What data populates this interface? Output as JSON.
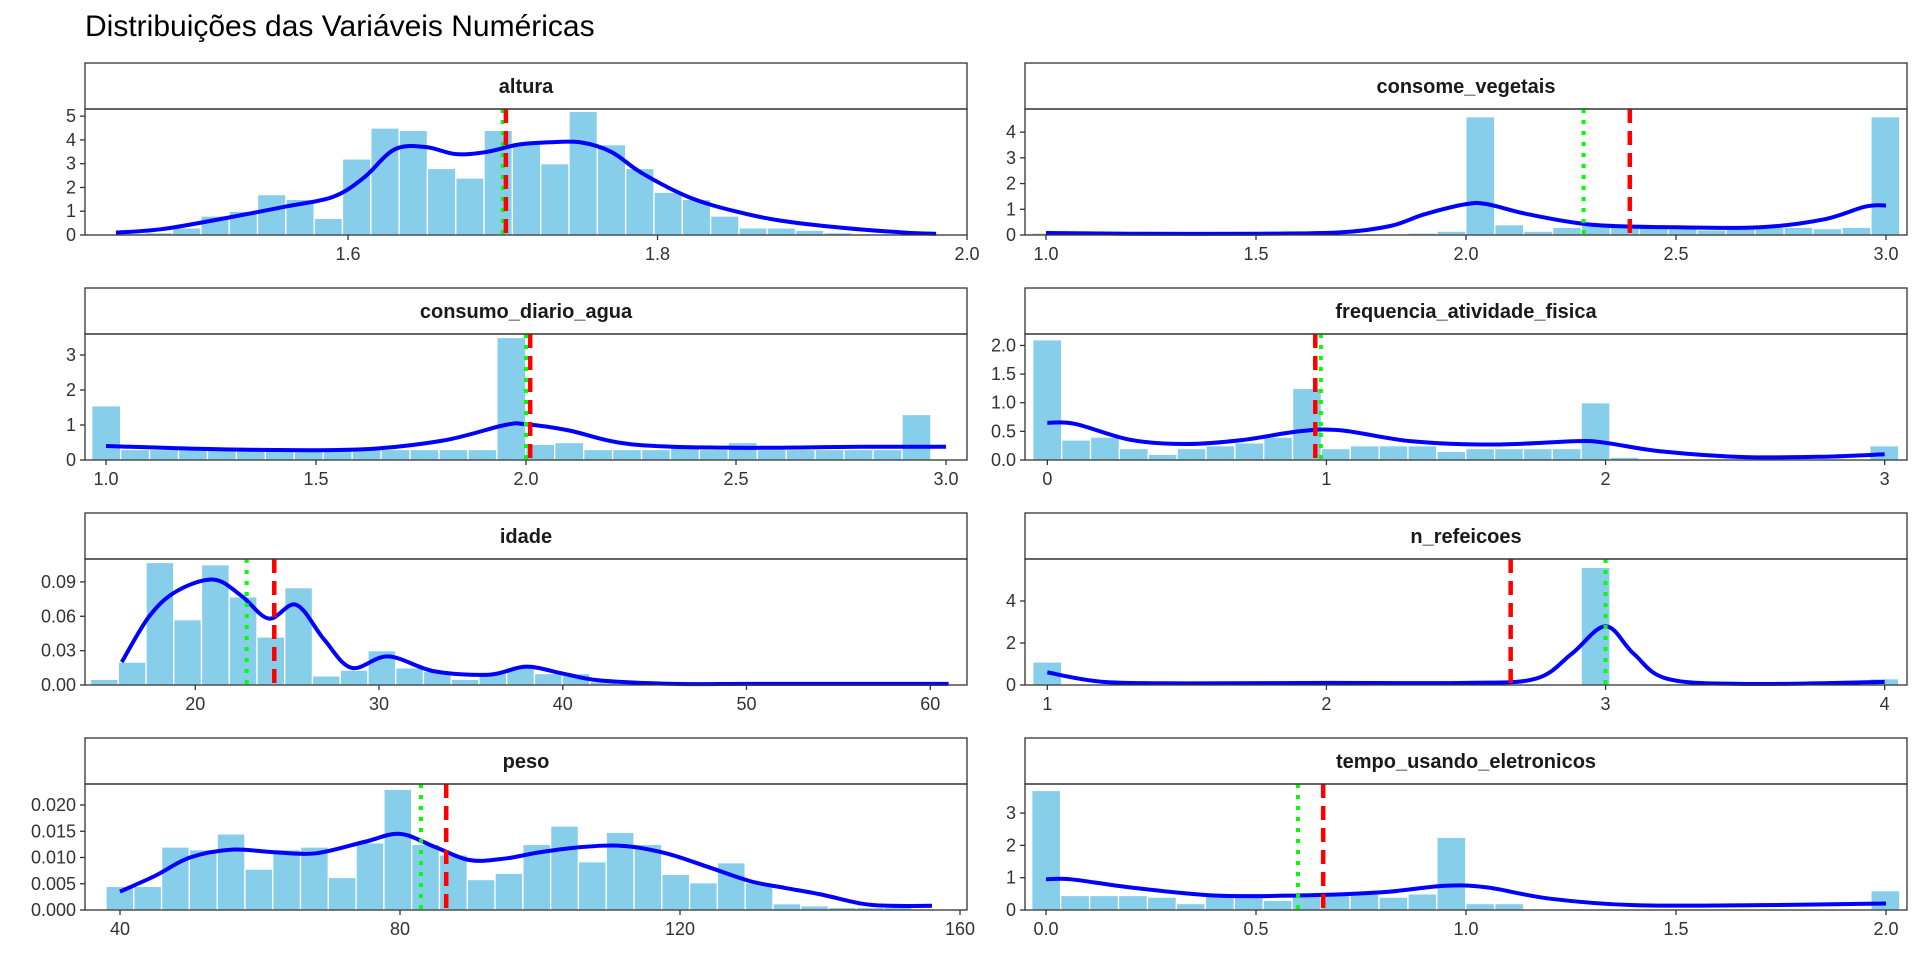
{
  "title": "Distribuições das Variáveis Numéricas",
  "colors": {
    "bar_fill": "#87CEEB",
    "bar_stroke": "#ffffff",
    "density": "#0000FF",
    "mean_line": "#FF0000",
    "median_line": "#00FF00",
    "strip_fill": "#ffffff",
    "panel_border": "#333333"
  },
  "chart_data": [
    {
      "type": "bar",
      "panel": "altura",
      "xlim": [
        1.43,
        2.0
      ],
      "ylim": [
        0,
        5.3
      ],
      "x_ticks": [
        1.6,
        1.8,
        2.0
      ],
      "x_tick_labels": [
        "1.6",
        "1.8",
        "2.0"
      ],
      "y_ticks": [
        0,
        1,
        2,
        3,
        4,
        5
      ],
      "y_tick_labels": [
        "0",
        "1",
        "2",
        "3",
        "4",
        "5"
      ],
      "bin_start": 1.45,
      "bin_width": 0.0183,
      "values": [
        0.08,
        0.1,
        0.3,
        0.8,
        1.0,
        1.7,
        1.5,
        0.7,
        3.2,
        4.5,
        4.4,
        2.8,
        2.4,
        4.4,
        3.9,
        3.0,
        5.2,
        3.8,
        2.8,
        1.8,
        1.5,
        0.8,
        0.3,
        0.3,
        0.2,
        0.1,
        0.05,
        0.05,
        0.03
      ],
      "density": [
        [
          1.45,
          0.1
        ],
        [
          1.48,
          0.25
        ],
        [
          1.52,
          0.7
        ],
        [
          1.56,
          1.2
        ],
        [
          1.59,
          1.6
        ],
        [
          1.61,
          2.4
        ],
        [
          1.63,
          3.6
        ],
        [
          1.65,
          3.7
        ],
        [
          1.67,
          3.4
        ],
        [
          1.69,
          3.5
        ],
        [
          1.71,
          3.8
        ],
        [
          1.73,
          3.9
        ],
        [
          1.75,
          3.9
        ],
        [
          1.77,
          3.5
        ],
        [
          1.79,
          2.6
        ],
        [
          1.82,
          1.6
        ],
        [
          1.85,
          1.0
        ],
        [
          1.88,
          0.6
        ],
        [
          1.92,
          0.3
        ],
        [
          1.96,
          0.1
        ],
        [
          1.98,
          0.05
        ]
      ],
      "mean": 1.702,
      "median": 1.7
    },
    {
      "type": "bar",
      "panel": "consome_vegetais",
      "xlim": [
        0.95,
        3.05
      ],
      "ylim": [
        0,
        4.9
      ],
      "x_ticks": [
        1.0,
        1.5,
        2.0,
        2.5,
        3.0
      ],
      "x_tick_labels": [
        "1.0",
        "1.5",
        "2.0",
        "2.5",
        "3.0"
      ],
      "y_ticks": [
        0,
        1,
        2,
        3,
        4
      ],
      "y_tick_labels": [
        "0",
        "1",
        "2",
        "3",
        "4"
      ],
      "bin_start": 0.966,
      "bin_width": 0.0689,
      "values": [
        0.08,
        0.03,
        0.03,
        0.03,
        0.03,
        0.03,
        0.03,
        0.03,
        0.03,
        0.03,
        0.03,
        0.05,
        0.05,
        0.08,
        0.15,
        4.6,
        0.4,
        0.15,
        0.3,
        0.4,
        0.3,
        0.3,
        0.25,
        0.2,
        0.3,
        0.3,
        0.3,
        0.25,
        0.3,
        4.6
      ],
      "density": [
        [
          1.0,
          0.08
        ],
        [
          1.2,
          0.05
        ],
        [
          1.5,
          0.05
        ],
        [
          1.7,
          0.1
        ],
        [
          1.82,
          0.35
        ],
        [
          1.9,
          0.8
        ],
        [
          2.0,
          1.2
        ],
        [
          2.05,
          1.2
        ],
        [
          2.15,
          0.8
        ],
        [
          2.3,
          0.4
        ],
        [
          2.5,
          0.3
        ],
        [
          2.7,
          0.3
        ],
        [
          2.85,
          0.6
        ],
        [
          2.95,
          1.1
        ],
        [
          3.0,
          1.15
        ]
      ],
      "mean": 2.39,
      "median": 2.28
    },
    {
      "type": "bar",
      "panel": "consumo_diario_agua",
      "xlim": [
        0.95,
        3.05
      ],
      "ylim": [
        0,
        3.6
      ],
      "x_ticks": [
        1.0,
        1.5,
        2.0,
        2.5,
        3.0
      ],
      "x_tick_labels": [
        "1.0",
        "1.5",
        "2.0",
        "2.5",
        "3.0"
      ],
      "y_ticks": [
        0,
        1,
        2,
        3
      ],
      "y_tick_labels": [
        "0",
        "1",
        "2",
        "3"
      ],
      "bin_start": 0.966,
      "bin_width": 0.0689,
      "values": [
        1.55,
        0.3,
        0.3,
        0.3,
        0.3,
        0.3,
        0.3,
        0.3,
        0.3,
        0.3,
        0.3,
        0.3,
        0.3,
        0.3,
        3.5,
        0.45,
        0.5,
        0.3,
        0.3,
        0.3,
        0.35,
        0.3,
        0.5,
        0.3,
        0.3,
        0.3,
        0.3,
        0.3,
        1.3
      ],
      "density": [
        [
          1.0,
          0.4
        ],
        [
          1.3,
          0.3
        ],
        [
          1.6,
          0.3
        ],
        [
          1.8,
          0.55
        ],
        [
          1.95,
          1.0
        ],
        [
          2.0,
          1.02
        ],
        [
          2.1,
          0.85
        ],
        [
          2.25,
          0.45
        ],
        [
          2.5,
          0.35
        ],
        [
          2.8,
          0.38
        ],
        [
          3.0,
          0.38
        ]
      ],
      "mean": 2.01,
      "median": 2.0
    },
    {
      "type": "bar",
      "panel": "frequencia_atividade_fisica",
      "xlim": [
        -0.08,
        3.08
      ],
      "ylim": [
        0,
        2.2
      ],
      "x_ticks": [
        0,
        1,
        2,
        3
      ],
      "x_tick_labels": [
        "0",
        "1",
        "2",
        "3"
      ],
      "y_ticks": [
        0,
        0.5,
        1.0,
        1.5,
        2.0
      ],
      "y_tick_labels": [
        "0.0",
        "0.5",
        "1.0",
        "1.5",
        "2.0"
      ],
      "bin_start": -0.052,
      "bin_width": 0.1034,
      "values": [
        2.1,
        0.35,
        0.4,
        0.2,
        0.1,
        0.2,
        0.25,
        0.3,
        0.4,
        1.25,
        0.2,
        0.25,
        0.25,
        0.25,
        0.15,
        0.2,
        0.2,
        0.2,
        0.2,
        1.0,
        0.05,
        0.02,
        0.02,
        0.02,
        0.02,
        0.02,
        0.02,
        0.02,
        0.02,
        0.25
      ],
      "density": [
        [
          0.0,
          0.65
        ],
        [
          0.1,
          0.63
        ],
        [
          0.3,
          0.35
        ],
        [
          0.5,
          0.28
        ],
        [
          0.7,
          0.35
        ],
        [
          0.9,
          0.5
        ],
        [
          1.05,
          0.52
        ],
        [
          1.3,
          0.33
        ],
        [
          1.6,
          0.27
        ],
        [
          1.9,
          0.33
        ],
        [
          2.0,
          0.3
        ],
        [
          2.2,
          0.15
        ],
        [
          2.5,
          0.05
        ],
        [
          2.8,
          0.06
        ],
        [
          3.0,
          0.1
        ]
      ],
      "mean": 0.96,
      "median": 0.98
    },
    {
      "type": "bar",
      "panel": "idade",
      "xlim": [
        14.0,
        62.0
      ],
      "ylim": [
        0,
        0.11
      ],
      "x_ticks": [
        20,
        30,
        40,
        50,
        60
      ],
      "x_tick_labels": [
        "20",
        "30",
        "40",
        "50",
        "60"
      ],
      "y_ticks": [
        0,
        0.03,
        0.06,
        0.09
      ],
      "y_tick_labels": [
        "0.00",
        "0.03",
        "0.06",
        "0.09"
      ],
      "bin_start": 14.3,
      "bin_width": 1.51,
      "values": [
        0.005,
        0.02,
        0.107,
        0.057,
        0.105,
        0.077,
        0.042,
        0.085,
        0.008,
        0.013,
        0.03,
        0.015,
        0.012,
        0.005,
        0.01,
        0.015,
        0.01,
        0.01,
        0.003,
        0.003,
        0.001,
        0.001,
        0.001,
        0.001,
        0.001,
        0.001,
        0.001,
        0.001,
        0.001,
        0.001,
        0.001
      ],
      "density": [
        [
          16,
          0.02
        ],
        [
          17.5,
          0.06
        ],
        [
          19,
          0.082
        ],
        [
          21,
          0.092
        ],
        [
          22.5,
          0.078
        ],
        [
          24,
          0.058
        ],
        [
          25.5,
          0.07
        ],
        [
          27,
          0.04
        ],
        [
          28.5,
          0.015
        ],
        [
          30.5,
          0.025
        ],
        [
          33,
          0.012
        ],
        [
          36,
          0.009
        ],
        [
          38,
          0.016
        ],
        [
          40,
          0.01
        ],
        [
          42,
          0.004
        ],
        [
          46,
          0.001
        ],
        [
          50,
          0.001
        ],
        [
          55,
          0.001
        ],
        [
          61,
          0.001
        ]
      ],
      "mean": 24.3,
      "median": 22.8
    },
    {
      "type": "bar",
      "panel": "n_refeicoes",
      "xlim": [
        0.92,
        4.08
      ],
      "ylim": [
        0,
        6.0
      ],
      "x_ticks": [
        1,
        2,
        3,
        4
      ],
      "x_tick_labels": [
        "1",
        "2",
        "3",
        "4"
      ],
      "y_ticks": [
        0,
        2,
        4
      ],
      "y_tick_labels": [
        "0",
        "2",
        "4"
      ],
      "bin_start": 0.948,
      "bin_width": 0.1034,
      "values": [
        1.1,
        0.05,
        0.05,
        0.05,
        0.05,
        0.05,
        0.05,
        0.05,
        0.05,
        0.05,
        0.05,
        0.05,
        0.05,
        0.05,
        0.05,
        0.05,
        0.05,
        0.05,
        0.05,
        5.6,
        0.05,
        0.05,
        0.05,
        0.05,
        0.05,
        0.05,
        0.05,
        0.05,
        0.05,
        0.3
      ],
      "density": [
        [
          1.0,
          0.6
        ],
        [
          1.2,
          0.15
        ],
        [
          1.5,
          0.08
        ],
        [
          2.0,
          0.1
        ],
        [
          2.5,
          0.1
        ],
        [
          2.75,
          0.3
        ],
        [
          2.88,
          1.5
        ],
        [
          3.0,
          2.8
        ],
        [
          3.1,
          1.5
        ],
        [
          3.22,
          0.3
        ],
        [
          3.5,
          0.05
        ],
        [
          4.0,
          0.15
        ]
      ],
      "mean": 2.66,
      "median": 3.0
    },
    {
      "type": "bar",
      "panel": "peso",
      "xlim": [
        35.0,
        161.0
      ],
      "ylim": [
        0,
        0.024
      ],
      "x_ticks": [
        40,
        80,
        120,
        160
      ],
      "x_tick_labels": [
        "40",
        "80",
        "120",
        "160"
      ],
      "y_ticks": [
        0,
        0.005,
        0.01,
        0.015,
        0.02
      ],
      "y_tick_labels": [
        "0.000",
        "0.005",
        "0.010",
        "0.015",
        "0.020"
      ],
      "bin_start": 38.0,
      "bin_width": 3.97,
      "values": [
        0.0045,
        0.0045,
        0.012,
        0.0115,
        0.0145,
        0.0078,
        0.0115,
        0.012,
        0.0062,
        0.0128,
        0.023,
        0.0125,
        0.0105,
        0.0058,
        0.007,
        0.0125,
        0.016,
        0.0092,
        0.0148,
        0.0125,
        0.0068,
        0.0052,
        0.009,
        0.0052,
        0.0012,
        0.0008,
        0.0005,
        0.0005,
        0.0005
      ],
      "density": [
        [
          40,
          0.0035
        ],
        [
          45,
          0.0065
        ],
        [
          50,
          0.01
        ],
        [
          56,
          0.0115
        ],
        [
          62,
          0.011
        ],
        [
          68,
          0.0108
        ],
        [
          75,
          0.013
        ],
        [
          80,
          0.0145
        ],
        [
          85,
          0.012
        ],
        [
          90,
          0.0095
        ],
        [
          95,
          0.0098
        ],
        [
          100,
          0.011
        ],
        [
          106,
          0.012
        ],
        [
          112,
          0.0122
        ],
        [
          118,
          0.0108
        ],
        [
          124,
          0.0082
        ],
        [
          130,
          0.0055
        ],
        [
          135,
          0.0042
        ],
        [
          140,
          0.003
        ],
        [
          146,
          0.0012
        ],
        [
          150,
          0.0008
        ],
        [
          156,
          0.0008
        ]
      ],
      "mean": 86.6,
      "median": 83.0
    },
    {
      "type": "bar",
      "panel": "tempo_usando_eletronicos",
      "xlim": [
        -0.05,
        2.05
      ],
      "ylim": [
        0,
        3.9
      ],
      "x_ticks": [
        0,
        0.5,
        1.0,
        1.5,
        2.0
      ],
      "x_tick_labels": [
        "0.0",
        "0.5",
        "1.0",
        "1.5",
        "2.0"
      ],
      "y_ticks": [
        0,
        1,
        2,
        3
      ],
      "y_tick_labels": [
        "0",
        "1",
        "2",
        "3"
      ],
      "bin_start": -0.034,
      "bin_width": 0.0689,
      "values": [
        3.7,
        0.45,
        0.45,
        0.45,
        0.4,
        0.2,
        0.45,
        0.45,
        0.3,
        0.45,
        0.45,
        0.5,
        0.4,
        0.5,
        2.25,
        0.2,
        0.2,
        0.03,
        0.03,
        0.03,
        0.03,
        0.03,
        0.03,
        0.03,
        0.03,
        0.03,
        0.03,
        0.03,
        0.03,
        0.6
      ],
      "density": [
        [
          0.0,
          0.95
        ],
        [
          0.06,
          0.95
        ],
        [
          0.2,
          0.7
        ],
        [
          0.4,
          0.45
        ],
        [
          0.6,
          0.45
        ],
        [
          0.8,
          0.55
        ],
        [
          0.95,
          0.75
        ],
        [
          1.05,
          0.7
        ],
        [
          1.2,
          0.35
        ],
        [
          1.4,
          0.15
        ],
        [
          1.7,
          0.15
        ],
        [
          2.0,
          0.2
        ]
      ],
      "mean": 0.66,
      "median": 0.6
    }
  ]
}
